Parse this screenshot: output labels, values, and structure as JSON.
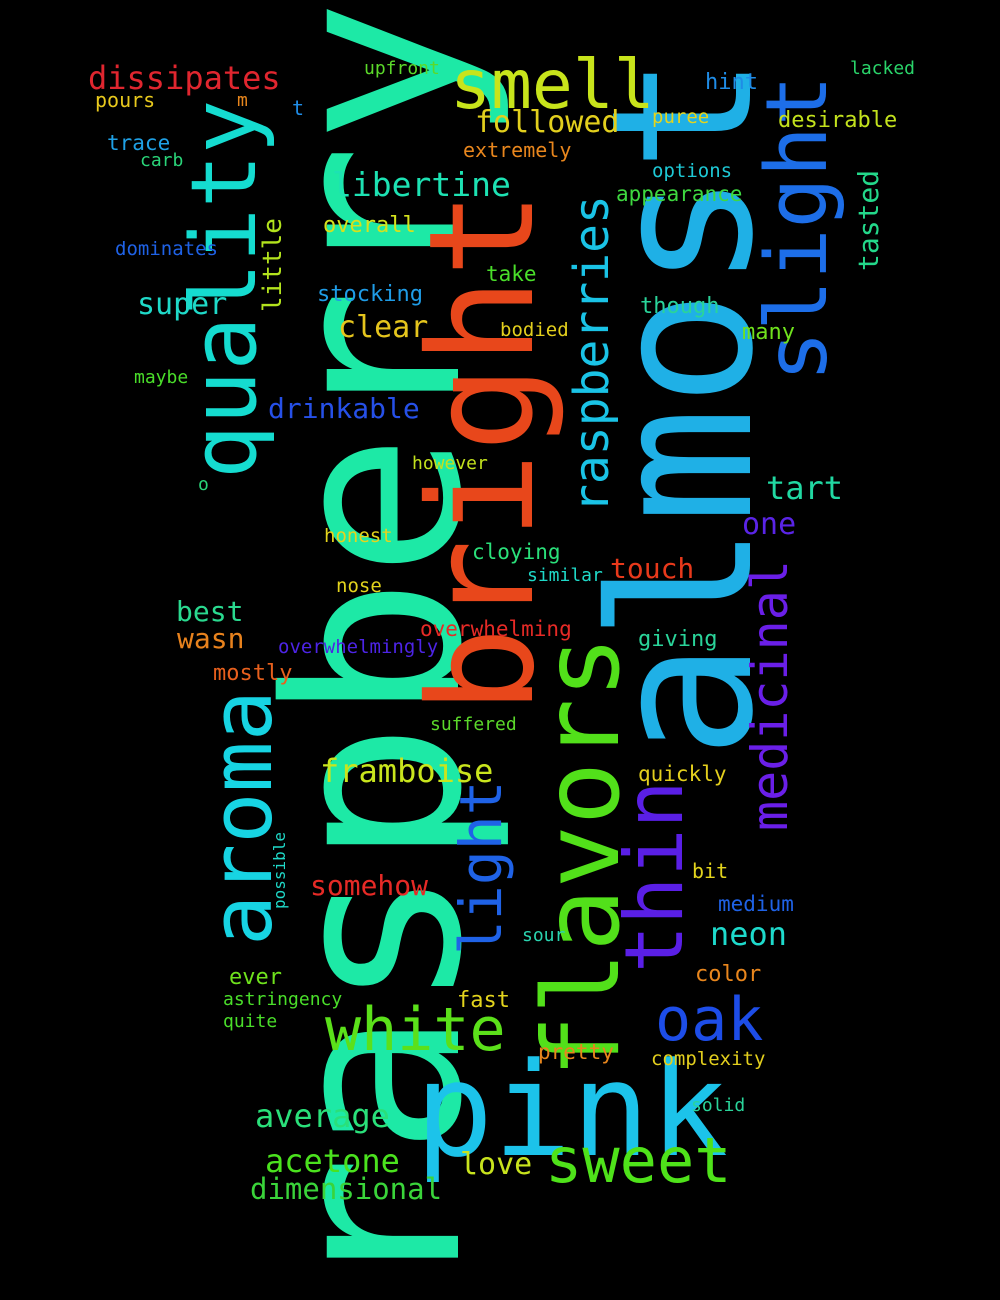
{
  "words": [
    {
      "text": "raspberry",
      "color": "#1de9a6"
    },
    {
      "text": "almost",
      "color": "#1fb0e6"
    },
    {
      "text": "bright",
      "color": "#e8471b"
    },
    {
      "text": "pink",
      "color": "#1cc3ea"
    },
    {
      "text": "flavors",
      "color": "#52e01a"
    },
    {
      "text": "quality",
      "color": "#15dcd0"
    },
    {
      "text": "slight",
      "color": "#1d6ee8"
    },
    {
      "text": "aroma",
      "color": "#17d4e3"
    },
    {
      "text": "thin",
      "color": "#5a1fe6"
    },
    {
      "text": "smell",
      "color": "#c8e41b"
    },
    {
      "text": "white",
      "color": "#5be01a"
    },
    {
      "text": "sweet",
      "color": "#4fe21a"
    },
    {
      "text": "oak",
      "color": "#1d4de8"
    },
    {
      "text": "light",
      "color": "#1f62e6"
    },
    {
      "text": "medicinal",
      "color": "#6a1fe8"
    },
    {
      "text": "raspberries",
      "color": "#1ac3e6"
    },
    {
      "text": "libertine",
      "color": "#1de2b3"
    },
    {
      "text": "framboise",
      "color": "#c9e51d"
    },
    {
      "text": "dissipates",
      "color": "#e0262f"
    },
    {
      "text": "followed",
      "color": "#e2cf1d"
    },
    {
      "text": "average",
      "color": "#2ae07a"
    },
    {
      "text": "acetone",
      "color": "#4be21e"
    },
    {
      "text": "dimensional",
      "color": "#3ad43a"
    },
    {
      "text": "love",
      "color": "#c8e31d"
    },
    {
      "text": "somehow",
      "color": "#e62a26"
    },
    {
      "text": "neon",
      "color": "#1edacc"
    },
    {
      "text": "tart",
      "color": "#21d8a2"
    },
    {
      "text": "one",
      "color": "#5a24e6"
    },
    {
      "text": "touch",
      "color": "#e8391b"
    },
    {
      "text": "clear",
      "color": "#e5c51d"
    },
    {
      "text": "super",
      "color": "#1fd9c8"
    },
    {
      "text": "drinkable",
      "color": "#2650e8"
    },
    {
      "text": "best",
      "color": "#2ad98f"
    },
    {
      "text": "wasn",
      "color": "#e8821d"
    },
    {
      "text": "little",
      "color": "#b3e31d"
    },
    {
      "text": "tasted",
      "color": "#23d88a"
    },
    {
      "text": "upfront",
      "color": "#5bd92a"
    },
    {
      "text": "lacked",
      "color": "#2ad46a"
    },
    {
      "text": "hint",
      "color": "#1f8ce6"
    },
    {
      "text": "desirable",
      "color": "#c3e21d"
    },
    {
      "text": "puree",
      "color": "#e3d41d"
    },
    {
      "text": "extremely",
      "color": "#e8861d"
    },
    {
      "text": "options",
      "color": "#1ec9d6"
    },
    {
      "text": "appearance",
      "color": "#3ed840"
    },
    {
      "text": "pours",
      "color": "#e8c91d"
    },
    {
      "text": "m",
      "color": "#e8861d"
    },
    {
      "text": "t",
      "color": "#1f8ce6"
    },
    {
      "text": "trace",
      "color": "#1fa1e6"
    },
    {
      "text": "carb",
      "color": "#2ad479"
    },
    {
      "text": "dominates",
      "color": "#1f62e6"
    },
    {
      "text": "overall",
      "color": "#d4e21d"
    },
    {
      "text": "stocking",
      "color": "#1f9ce6"
    },
    {
      "text": "take",
      "color": "#4ade2a"
    },
    {
      "text": "though",
      "color": "#2ad49a"
    },
    {
      "text": "many",
      "color": "#6fe21d"
    },
    {
      "text": "bodied",
      "color": "#e3cf1d"
    },
    {
      "text": "maybe",
      "color": "#4ade2a"
    },
    {
      "text": "however",
      "color": "#c3e21d"
    },
    {
      "text": "o",
      "color": "#2ad479"
    },
    {
      "text": "honest",
      "color": "#e5d41d"
    },
    {
      "text": "cloying",
      "color": "#2ae07a"
    },
    {
      "text": "similar",
      "color": "#1fd9c8"
    },
    {
      "text": "nose",
      "color": "#e3d41d"
    },
    {
      "text": "overwhelming",
      "color": "#e62a26"
    },
    {
      "text": "overwhelmingly",
      "color": "#4d24e6"
    },
    {
      "text": "giving",
      "color": "#2ad49a"
    },
    {
      "text": "mostly",
      "color": "#e8601d"
    },
    {
      "text": "suffered",
      "color": "#5bd92a"
    },
    {
      "text": "quickly",
      "color": "#e3cf1d"
    },
    {
      "text": "bit",
      "color": "#e3d41d"
    },
    {
      "text": "medium",
      "color": "#1f62e6"
    },
    {
      "text": "possible",
      "color": "#1fd9c8"
    },
    {
      "text": "sour",
      "color": "#2ad4b0"
    },
    {
      "text": "color",
      "color": "#e8861d"
    },
    {
      "text": "ever",
      "color": "#6fe21d"
    },
    {
      "text": "astringency",
      "color": "#4ade2a"
    },
    {
      "text": "fast",
      "color": "#e3d41d"
    },
    {
      "text": "quite",
      "color": "#4ade2a"
    },
    {
      "text": "pretty",
      "color": "#e8861d"
    },
    {
      "text": "complexity",
      "color": "#e3cf1d"
    },
    {
      "text": "solid",
      "color": "#2ad49a"
    }
  ]
}
